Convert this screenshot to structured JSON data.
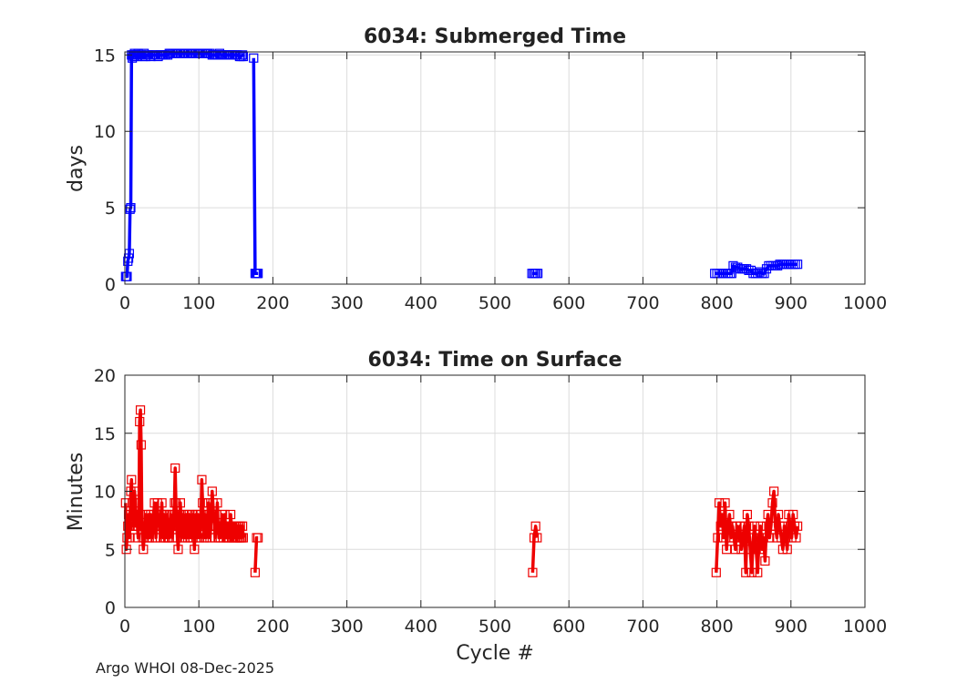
{
  "footer": {
    "text": "Argo WHOI 08-Dec-2025"
  },
  "colors": {
    "submerged": "#0000ff",
    "surface": "#ee0000",
    "grid": "#dcdcdc",
    "axis": "#262626"
  },
  "chart_data": [
    {
      "type": "line",
      "title": "6034: Submerged Time",
      "xlabel": "",
      "ylabel": "days",
      "xlim": [
        0,
        1000
      ],
      "ylim": [
        0,
        15.2
      ],
      "xticks": [
        0,
        100,
        200,
        300,
        400,
        500,
        600,
        700,
        800,
        900,
        1000
      ],
      "yticks": [
        0,
        5,
        10,
        15
      ],
      "grid": true,
      "marker": "square",
      "series": [
        {
          "name": "Submerged Time",
          "segments": [
            {
              "x": [
                1,
                2,
                3,
                4,
                5,
                6,
                7,
                8,
                9,
                10,
                11,
                12,
                13,
                14,
                15,
                16,
                18,
                20,
                22,
                24,
                26,
                28,
                30,
                32,
                35,
                38,
                40,
                42,
                45,
                48,
                50,
                52,
                55,
                58,
                60,
                62,
                65,
                68,
                70,
                72,
                75,
                78,
                80,
                82,
                85,
                88,
                90,
                92,
                95,
                98,
                100,
                102,
                105,
                108,
                110,
                112,
                115,
                118,
                120,
                122,
                125,
                128,
                130,
                132,
                135,
                138,
                140,
                142,
                145,
                148,
                150,
                152,
                155,
                157,
                159,
                160
              ],
              "y": [
                0.5,
                0.5,
                0.5,
                1.5,
                1.7,
                2.0,
                4.9,
                5.0,
                15.0,
                14.8,
                15.0,
                14.9,
                15.1,
                15.0,
                15.0,
                14.9,
                15.1,
                15.0,
                15.0,
                14.9,
                15.1,
                14.9,
                15.0,
                15.0,
                14.9,
                15.0,
                15.0,
                15.0,
                14.9,
                15.0,
                15.0,
                15.0,
                15.0,
                15.0,
                15.1,
                15.1,
                15.1,
                15.1,
                15.1,
                15.1,
                15.1,
                15.1,
                15.1,
                15.1,
                15.1,
                15.1,
                15.1,
                15.1,
                15.1,
                15.1,
                15.1,
                15.1,
                15.1,
                15.1,
                15.1,
                15.1,
                15.1,
                15.0,
                15.0,
                15.0,
                15.0,
                15.1,
                15.0,
                15.0,
                15.0,
                15.0,
                15.0,
                15.0,
                15.0,
                15.0,
                15.0,
                15.0,
                14.9,
                14.9,
                15.0,
                14.9
              ]
            },
            {
              "x": [
                174,
                176,
                177,
                178,
                179,
                180
              ],
              "y": [
                14.8,
                0.7,
                0.7,
                0.7,
                0.7,
                0.7
              ]
            },
            {
              "x": [
                550,
                552,
                554,
                556,
                558
              ],
              "y": [
                0.7,
                0.7,
                0.7,
                0.7,
                0.7
              ]
            },
            {
              "x": [
                797,
                800,
                803,
                806,
                809,
                812,
                815,
                818,
                820,
                822,
                825,
                828,
                831,
                834,
                837,
                840,
                843,
                846,
                849,
                852,
                855,
                858,
                861,
                864,
                867,
                870,
                873,
                876,
                879,
                882,
                885,
                888,
                891,
                894,
                897,
                900,
                903,
                906,
                909
              ],
              "y": [
                0.7,
                0.7,
                0.7,
                0.7,
                0.7,
                0.7,
                0.7,
                0.7,
                0.7,
                1.2,
                1.1,
                1.1,
                1.0,
                1.0,
                1.0,
                1.0,
                0.9,
                0.9,
                0.7,
                0.7,
                0.7,
                0.8,
                0.7,
                0.7,
                1.0,
                1.2,
                1.2,
                1.2,
                1.2,
                1.2,
                1.3,
                1.3,
                1.3,
                1.3,
                1.3,
                1.3,
                1.3,
                1.3,
                1.3
              ]
            }
          ]
        }
      ]
    },
    {
      "type": "line",
      "title": "6034: Time on Surface",
      "xlabel": "Cycle #",
      "ylabel": "Minutes",
      "xlim": [
        0,
        1000
      ],
      "ylim": [
        0,
        20
      ],
      "xticks": [
        0,
        100,
        200,
        300,
        400,
        500,
        600,
        700,
        800,
        900,
        1000
      ],
      "yticks": [
        0,
        5,
        10,
        15,
        20
      ],
      "grid": true,
      "marker": "square",
      "series": [
        {
          "name": "Time on Surface",
          "segments": [
            {
              "x": [
                1,
                2,
                3,
                4,
                5,
                6,
                7,
                8,
                9,
                10,
                11,
                12,
                13,
                14,
                15,
                16,
                17,
                18,
                19,
                20,
                21,
                22,
                23,
                24,
                25,
                26,
                27,
                28,
                29,
                30,
                31,
                32,
                33,
                34,
                35,
                36,
                37,
                38,
                39,
                40,
                41,
                42,
                43,
                44,
                45,
                46,
                47,
                48,
                49,
                50,
                51,
                52,
                53,
                54,
                55,
                56,
                57,
                58,
                59,
                60,
                61,
                62,
                63,
                64,
                65,
                66,
                67,
                68,
                69,
                70,
                71,
                72,
                73,
                74,
                75,
                76,
                77,
                78,
                79,
                80,
                81,
                82,
                83,
                84,
                85,
                86,
                87,
                88,
                89,
                90,
                91,
                92,
                93,
                94,
                95,
                96,
                97,
                98,
                99,
                100,
                101,
                102,
                103,
                104,
                105,
                106,
                107,
                108,
                109,
                110,
                111,
                112,
                113,
                114,
                115,
                116,
                117,
                118,
                119,
                120,
                121,
                122,
                123,
                124,
                125,
                126,
                127,
                128,
                129,
                130,
                131,
                132,
                133,
                134,
                135,
                136,
                137,
                138,
                139,
                140,
                141,
                142,
                143,
                144,
                145,
                146,
                147,
                148,
                149,
                150,
                151,
                152,
                153,
                154,
                155,
                156,
                157,
                158,
                159,
                160
              ],
              "y": [
                9,
                5,
                6,
                7,
                8,
                6,
                7,
                10,
                11,
                9,
                8,
                7,
                10,
                9,
                7,
                8,
                7,
                6,
                8,
                16,
                17,
                14,
                7,
                6,
                5,
                6,
                7,
                8,
                7,
                6,
                7,
                8,
                6,
                7,
                8,
                7,
                6,
                7,
                8,
                9,
                7,
                6,
                8,
                9,
                7,
                8,
                7,
                6,
                8,
                9,
                7,
                6,
                8,
                7,
                6,
                7,
                8,
                6,
                7,
                6,
                7,
                8,
                7,
                6,
                7,
                8,
                9,
                12,
                9,
                7,
                6,
                5,
                7,
                8,
                9,
                7,
                6,
                7,
                8,
                7,
                6,
                7,
                8,
                7,
                6,
                7,
                8,
                7,
                6,
                7,
                8,
                6,
                7,
                5,
                7,
                8,
                7,
                6,
                8,
                7,
                6,
                7,
                8,
                11,
                9,
                7,
                6,
                8,
                7,
                6,
                7,
                8,
                9,
                7,
                6,
                7,
                8,
                10,
                9,
                8,
                7,
                6,
                7,
                8,
                9,
                7,
                6,
                7,
                6,
                7,
                8,
                7,
                6,
                7,
                8,
                7,
                6,
                7,
                6,
                7,
                6,
                7,
                8,
                7,
                6,
                7,
                6,
                7,
                6,
                7,
                6,
                7,
                6,
                7,
                6,
                7,
                6,
                6,
                7,
                6
              ],
              "note": "values around cycles 1-160"
            },
            {
              "x": [
                176,
                178,
                180
              ],
              "y": [
                3,
                6,
                6
              ]
            },
            {
              "x": [
                551,
                553,
                555,
                557
              ],
              "y": [
                3,
                6,
                7,
                6
              ]
            },
            {
              "x": [
                799,
                801,
                803,
                805,
                807,
                809,
                811,
                813,
                815,
                817,
                819,
                821,
                823,
                825,
                827,
                829,
                831,
                833,
                835,
                837,
                839,
                841,
                843,
                845,
                847,
                849,
                851,
                853,
                855,
                857,
                859,
                861,
                863,
                865,
                867,
                869,
                871,
                873,
                875,
                877,
                879,
                881,
                883,
                885,
                887,
                889,
                891,
                893,
                895,
                897,
                899,
                901,
                903,
                905,
                907,
                909
              ],
              "y": [
                3,
                6,
                9,
                7,
                8,
                6,
                9,
                5,
                7,
                8,
                6,
                7,
                6,
                5,
                7,
                6,
                7,
                5,
                6,
                7,
                3,
                8,
                7,
                5,
                3,
                6,
                7,
                5,
                3,
                6,
                7,
                5,
                6,
                4,
                7,
                8,
                6,
                7,
                9,
                10,
                7,
                6,
                8,
                7,
                6,
                5,
                7,
                6,
                5,
                8,
                7,
                6,
                8,
                7,
                6,
                7
              ]
            }
          ]
        }
      ]
    }
  ]
}
